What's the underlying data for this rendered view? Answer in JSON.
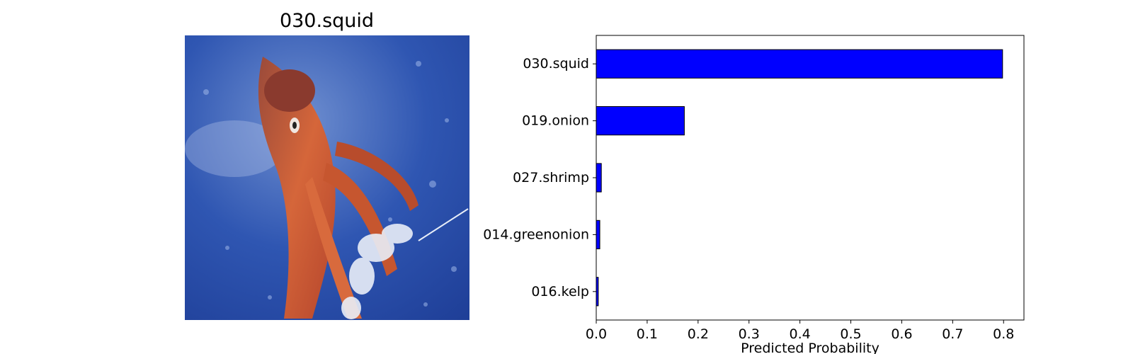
{
  "image_panel": {
    "title": "030.squid",
    "photo_icon": "squid-photo"
  },
  "colors": {
    "bar_fill": "#0000ff",
    "bar_edge": "#000000",
    "water": "#2e55b0",
    "squid": "#c85a35"
  },
  "chart_data": {
    "type": "bar",
    "orientation": "horizontal",
    "categories": [
      "030.squid",
      "019.onion",
      "027.shrimp",
      "014.greenonion",
      "016.kelp"
    ],
    "values": [
      0.798,
      0.173,
      0.01,
      0.007,
      0.004
    ],
    "xlabel": "Predicted Probability",
    "ylabel": "",
    "title": "",
    "xlim": [
      0,
      0.84
    ],
    "xticks": [
      "0.0",
      "0.1",
      "0.2",
      "0.3",
      "0.4",
      "0.5",
      "0.6",
      "0.7",
      "0.8"
    ],
    "grid": false
  }
}
